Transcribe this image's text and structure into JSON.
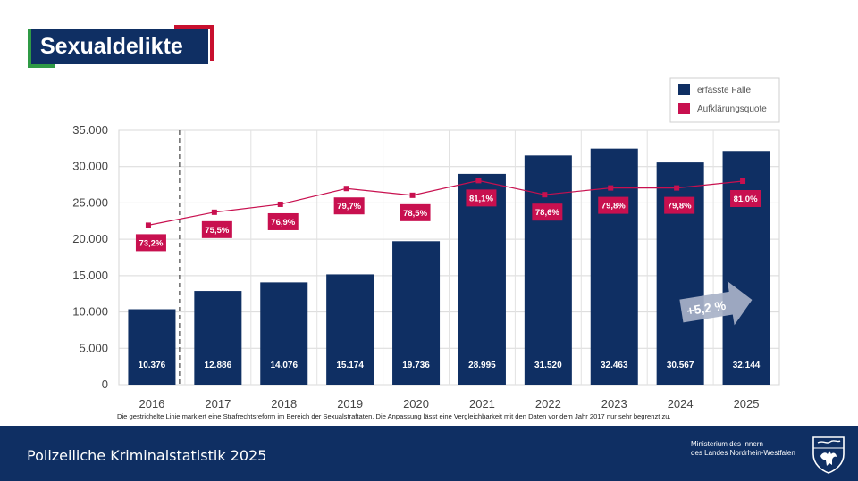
{
  "title": "Sexualdelikte",
  "footer": {
    "title": "Polizeiliche Kriminalstatistik 2025",
    "ministry_line1": "Ministerium des Innern",
    "ministry_line2": "des Landes Nordrhein-Westfalen"
  },
  "footnote": "Die gestrichelte Linie markiert eine Strafrechtsreform im Bereich der Sexualstraftaten. Die Anpassung lässt eine Vergleichbarkeit mit den Daten vor dem Jahr 2017 nur sehr begrenzt zu.",
  "colors": {
    "bar": "#0f2f63",
    "line": "#c8104f",
    "accent_green": "#2f9a45",
    "accent_red": "#c8102e"
  },
  "chart_data": {
    "type": "bar",
    "categories": [
      "2016",
      "2017",
      "2018",
      "2019",
      "2020",
      "2021",
      "2022",
      "2023",
      "2024",
      "2025"
    ],
    "series": [
      {
        "name": "erfasste Fälle",
        "type": "bar",
        "values": [
          10376,
          12886,
          14076,
          15174,
          19736,
          28995,
          31520,
          32463,
          30567,
          32144
        ],
        "labels": [
          "10.376",
          "12.886",
          "14.076",
          "15.174",
          "19.736",
          "28.995",
          "31.520",
          "32.463",
          "30.567",
          "32.144"
        ]
      },
      {
        "name": "Aufklärungsquote",
        "type": "line",
        "values": [
          73.2,
          75.5,
          76.9,
          79.7,
          78.5,
          81.1,
          78.6,
          79.8,
          79.8,
          81.0
        ],
        "labels": [
          "73,2%",
          "75,5%",
          "76,9%",
          "79,7%",
          "78,5%",
          "81,1%",
          "78,6%",
          "79,8%",
          "79,8%",
          "81,0%"
        ]
      }
    ],
    "ylim": [
      0,
      35000
    ],
    "yticks": [
      0,
      5000,
      10000,
      15000,
      20000,
      25000,
      30000,
      35000
    ],
    "ytick_labels": [
      "0",
      "5.000",
      "10.000",
      "15.000",
      "20.000",
      "25.000",
      "30.000",
      "35.000"
    ],
    "line_axis_range": [
      45,
      90
    ],
    "reform_marker_between": [
      "2016",
      "2017"
    ],
    "annotation": "+5,2 %",
    "legend": [
      "erfasste Fälle",
      "Aufklärungsquote"
    ],
    "legend_position": "top-right",
    "grid": true
  }
}
